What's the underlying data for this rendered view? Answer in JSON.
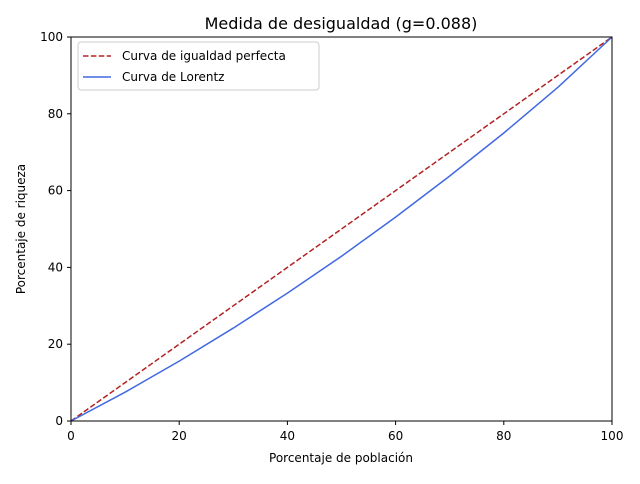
{
  "chart_data": {
    "type": "line",
    "title": "Medida de desigualdad (g=0.088)",
    "xlabel": "Porcentaje de población",
    "ylabel": "Porcentaje de riqueza",
    "xlim": [
      0,
      100
    ],
    "ylim": [
      0,
      100
    ],
    "xticks": [
      0,
      20,
      40,
      60,
      80,
      100
    ],
    "yticks": [
      0,
      20,
      40,
      60,
      80,
      100
    ],
    "grid": false,
    "legend_position": "upper-left",
    "series": [
      {
        "name": "Curva de igualdad perfecta",
        "style": "dashed",
        "color": "#b22222",
        "x": [
          0,
          10,
          20,
          30,
          40,
          50,
          60,
          70,
          80,
          90,
          100
        ],
        "y": [
          0,
          10,
          20,
          30,
          40,
          50,
          60,
          70,
          80,
          90,
          100
        ]
      },
      {
        "name": "Curva de Lorentz",
        "style": "solid",
        "color": "#4169e1",
        "x": [
          0,
          10,
          20,
          30,
          40,
          50,
          60,
          70,
          80,
          90,
          100
        ],
        "y": [
          0,
          7.5,
          15.6,
          24.2,
          33.3,
          42.9,
          53.1,
          63.8,
          75.0,
          86.9,
          100
        ]
      }
    ]
  }
}
